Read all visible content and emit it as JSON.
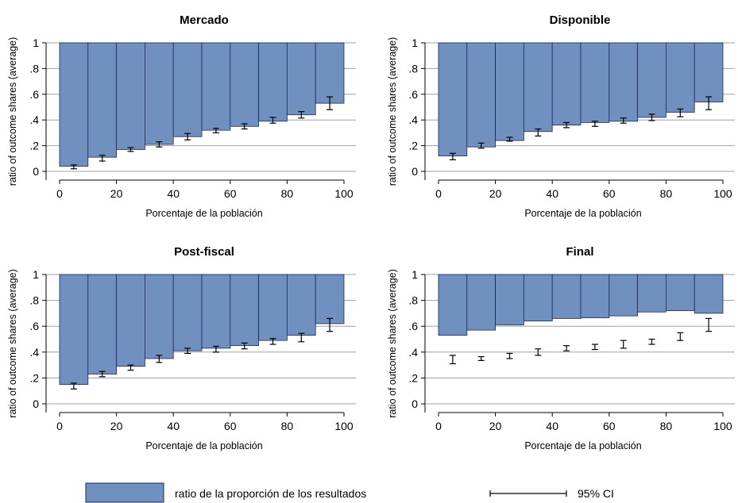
{
  "colors": {
    "bar_fill": "#7090c0",
    "bar_stroke": "#1a2a5a",
    "gridline": "#a0a0a0",
    "ci": "#000000"
  },
  "chart_data": [
    {
      "type": "bar",
      "title": "Mercado",
      "xlabel": "Porcentaje de la población",
      "ylabel": "ratio of outcome shares (average)",
      "x_ticks": [
        "0",
        "20",
        "40",
        "60",
        "80",
        "100"
      ],
      "y_ticks": [
        "0",
        ".2",
        ".4",
        ".6",
        ".8",
        "1"
      ],
      "xlim": [
        0,
        100
      ],
      "ylim": [
        0,
        1
      ],
      "bar_edges": [
        0,
        10,
        20,
        30,
        40,
        50,
        60,
        70,
        80,
        90,
        100
      ],
      "bar_top": 1.0,
      "values": [
        0.04,
        0.11,
        0.17,
        0.21,
        0.27,
        0.32,
        0.35,
        0.39,
        0.44,
        0.53
      ],
      "ci_x": [
        5,
        15,
        25,
        35,
        45,
        55,
        65,
        75,
        85,
        95
      ],
      "ci_center": [
        0.035,
        0.1,
        0.17,
        0.21,
        0.27,
        0.32,
        0.35,
        0.4,
        0.44,
        0.53
      ],
      "ci_low": [
        0.02,
        0.08,
        0.155,
        0.19,
        0.245,
        0.3,
        0.33,
        0.375,
        0.415,
        0.48
      ],
      "ci_high": [
        0.05,
        0.125,
        0.185,
        0.23,
        0.295,
        0.335,
        0.37,
        0.42,
        0.465,
        0.58
      ],
      "grid": true
    },
    {
      "type": "bar",
      "title": "Disponible",
      "xlabel": "Porcentaje de la población",
      "ylabel": "ratio of outcome shares (average)",
      "x_ticks": [
        "0",
        "20",
        "40",
        "60",
        "80",
        "100"
      ],
      "y_ticks": [
        "0",
        ".2",
        ".4",
        ".6",
        ".8",
        "1"
      ],
      "xlim": [
        0,
        100
      ],
      "ylim": [
        0,
        1
      ],
      "bar_edges": [
        0,
        10,
        20,
        30,
        40,
        50,
        60,
        70,
        80,
        90,
        100
      ],
      "bar_top": 1.0,
      "values": [
        0.12,
        0.19,
        0.24,
        0.31,
        0.36,
        0.38,
        0.39,
        0.42,
        0.46,
        0.54
      ],
      "ci_x": [
        5,
        15,
        25,
        35,
        45,
        55,
        65,
        75,
        85,
        95
      ],
      "ci_center": [
        0.115,
        0.2,
        0.25,
        0.3,
        0.36,
        0.37,
        0.395,
        0.42,
        0.455,
        0.53
      ],
      "ci_low": [
        0.09,
        0.18,
        0.235,
        0.275,
        0.34,
        0.35,
        0.375,
        0.395,
        0.425,
        0.48
      ],
      "ci_high": [
        0.14,
        0.22,
        0.265,
        0.33,
        0.38,
        0.39,
        0.415,
        0.445,
        0.485,
        0.58
      ],
      "grid": true
    },
    {
      "type": "bar",
      "title": "Post-fiscal",
      "xlabel": "Porcentaje de la población",
      "ylabel": "ratio of outcome shares (average)",
      "x_ticks": [
        "0",
        "20",
        "40",
        "60",
        "80",
        "100"
      ],
      "y_ticks": [
        "0",
        ".2",
        ".4",
        ".6",
        ".8",
        "1"
      ],
      "xlim": [
        0,
        100
      ],
      "ylim": [
        0,
        1
      ],
      "bar_edges": [
        0,
        10,
        20,
        30,
        40,
        50,
        60,
        70,
        80,
        90,
        100
      ],
      "bar_top": 1.0,
      "values": [
        0.15,
        0.23,
        0.29,
        0.35,
        0.41,
        0.43,
        0.45,
        0.49,
        0.53,
        0.62
      ],
      "ci_x": [
        5,
        15,
        25,
        35,
        45,
        55,
        65,
        75,
        85,
        95
      ],
      "ci_center": [
        0.14,
        0.23,
        0.28,
        0.35,
        0.41,
        0.42,
        0.45,
        0.48,
        0.51,
        0.61
      ],
      "ci_low": [
        0.115,
        0.21,
        0.26,
        0.32,
        0.39,
        0.4,
        0.425,
        0.46,
        0.48,
        0.56
      ],
      "ci_high": [
        0.16,
        0.25,
        0.3,
        0.375,
        0.43,
        0.445,
        0.47,
        0.505,
        0.545,
        0.66
      ],
      "grid": true
    },
    {
      "type": "bar",
      "title": "Final",
      "xlabel": "Porcentaje de la población",
      "ylabel": "ratio of outcome shares (average)",
      "x_ticks": [
        "0",
        "20",
        "40",
        "60",
        "80",
        "100"
      ],
      "y_ticks": [
        "0",
        ".2",
        ".4",
        ".6",
        ".8",
        "1"
      ],
      "xlim": [
        0,
        100
      ],
      "ylim": [
        0,
        1
      ],
      "bar_edges": [
        0,
        10,
        20,
        30,
        40,
        50,
        60,
        70,
        80,
        90,
        100
      ],
      "bar_top": 1.0,
      "values": [
        0.53,
        0.57,
        0.61,
        0.64,
        0.66,
        0.665,
        0.68,
        0.71,
        0.72,
        0.7
      ],
      "ci_x": [
        5,
        15,
        25,
        35,
        45,
        55,
        65,
        75,
        85,
        95
      ],
      "ci_center": [
        0.345,
        0.35,
        0.37,
        0.4,
        0.43,
        0.44,
        0.46,
        0.48,
        0.52,
        0.61
      ],
      "ci_low": [
        0.31,
        0.335,
        0.35,
        0.375,
        0.41,
        0.42,
        0.43,
        0.46,
        0.49,
        0.56
      ],
      "ci_high": [
        0.375,
        0.365,
        0.39,
        0.425,
        0.45,
        0.46,
        0.49,
        0.5,
        0.55,
        0.66
      ],
      "grid": true
    }
  ],
  "legend": {
    "items": [
      {
        "label": "ratio de la proporción de los resultados",
        "kind": "bar"
      },
      {
        "label": "95% CI",
        "kind": "ci"
      }
    ]
  }
}
